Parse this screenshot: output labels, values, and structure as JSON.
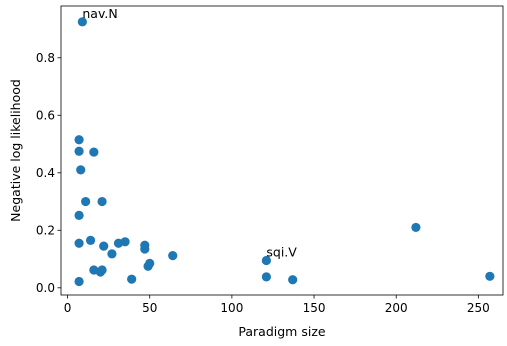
{
  "chart_data": {
    "type": "scatter",
    "xlabel": "Paradigm size",
    "ylabel": "Negative log likelihood",
    "xlim": [
      -4,
      265
    ],
    "ylim": [
      -0.025,
      0.98
    ],
    "xticks": [
      0,
      50,
      100,
      150,
      200,
      250
    ],
    "xtick_labels": [
      "0",
      "50",
      "100",
      "150",
      "200",
      "250"
    ],
    "yticks": [
      0.0,
      0.2,
      0.4,
      0.6,
      0.8
    ],
    "ytick_labels": [
      "0.0",
      "0.2",
      "0.4",
      "0.6",
      "0.8"
    ],
    "grid": false,
    "point_color": "#1f77b4",
    "points": [
      {
        "x": 9,
        "y": 0.925
      },
      {
        "x": 7,
        "y": 0.515
      },
      {
        "x": 7,
        "y": 0.475
      },
      {
        "x": 16,
        "y": 0.472
      },
      {
        "x": 8,
        "y": 0.41
      },
      {
        "x": 11,
        "y": 0.3
      },
      {
        "x": 21,
        "y": 0.3
      },
      {
        "x": 7,
        "y": 0.252
      },
      {
        "x": 7,
        "y": 0.155
      },
      {
        "x": 14,
        "y": 0.165
      },
      {
        "x": 22,
        "y": 0.145
      },
      {
        "x": 27,
        "y": 0.118
      },
      {
        "x": 31,
        "y": 0.155
      },
      {
        "x": 35,
        "y": 0.16
      },
      {
        "x": 47,
        "y": 0.148
      },
      {
        "x": 47,
        "y": 0.135
      },
      {
        "x": 49,
        "y": 0.075
      },
      {
        "x": 50,
        "y": 0.085
      },
      {
        "x": 64,
        "y": 0.112
      },
      {
        "x": 16,
        "y": 0.062
      },
      {
        "x": 20,
        "y": 0.055
      },
      {
        "x": 21,
        "y": 0.062
      },
      {
        "x": 7,
        "y": 0.022
      },
      {
        "x": 39,
        "y": 0.03
      },
      {
        "x": 121,
        "y": 0.095
      },
      {
        "x": 121,
        "y": 0.038
      },
      {
        "x": 137,
        "y": 0.028
      },
      {
        "x": 212,
        "y": 0.21
      },
      {
        "x": 257,
        "y": 0.04
      }
    ],
    "annotations": [
      {
        "text": "nav.N",
        "x": 9,
        "y": 0.925
      },
      {
        "text": "sqi.V",
        "x": 121,
        "y": 0.095
      }
    ]
  }
}
